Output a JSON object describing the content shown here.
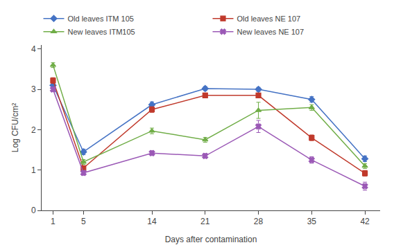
{
  "chart_data": {
    "type": "line",
    "xlabel": "Days after contamination",
    "ylabel": "Log CFU/cm²",
    "x": [
      1,
      5,
      14,
      21,
      28,
      35,
      42
    ],
    "series": [
      {
        "name": "Old leaves ITM 105",
        "color": "#4472C4",
        "marker": "diamond",
        "values": [
          3.1,
          1.45,
          2.62,
          3.02,
          3.0,
          2.75,
          1.28
        ],
        "yerr": [
          0.07,
          0.07,
          0.07,
          0.05,
          0.05,
          0.07,
          0.07
        ]
      },
      {
        "name": "Old leaves NE 107",
        "color": "#C0392B",
        "marker": "square",
        "values": [
          3.22,
          1.05,
          2.5,
          2.85,
          2.85,
          1.8,
          0.92
        ],
        "yerr": [
          0.07,
          0.05,
          0.07,
          0.06,
          0.06,
          0.07,
          0.07
        ]
      },
      {
        "name": "New leaves ITM105",
        "color": "#70AD47",
        "marker": "triangle-up",
        "values": [
          3.6,
          1.2,
          1.97,
          1.75,
          2.48,
          2.55,
          1.1
        ],
        "yerr": [
          0.06,
          0.06,
          0.07,
          0.06,
          0.2,
          0.07,
          0.06
        ]
      },
      {
        "name": "New leaves NE 107",
        "color": "#9B59B6",
        "marker": "x",
        "values": [
          3.0,
          0.93,
          1.42,
          1.35,
          2.08,
          1.25,
          0.6
        ],
        "yerr": [
          0.06,
          0.06,
          0.06,
          0.06,
          0.15,
          0.08,
          0.1
        ]
      }
    ],
    "xlim": [
      -0.5,
      44
    ],
    "xticks": [
      1,
      5,
      14,
      21,
      28,
      35,
      42
    ],
    "ylim": [
      0,
      4.1
    ],
    "yticks": [
      0,
      1,
      2,
      3,
      4
    ],
    "grid": false,
    "legend": "top"
  }
}
